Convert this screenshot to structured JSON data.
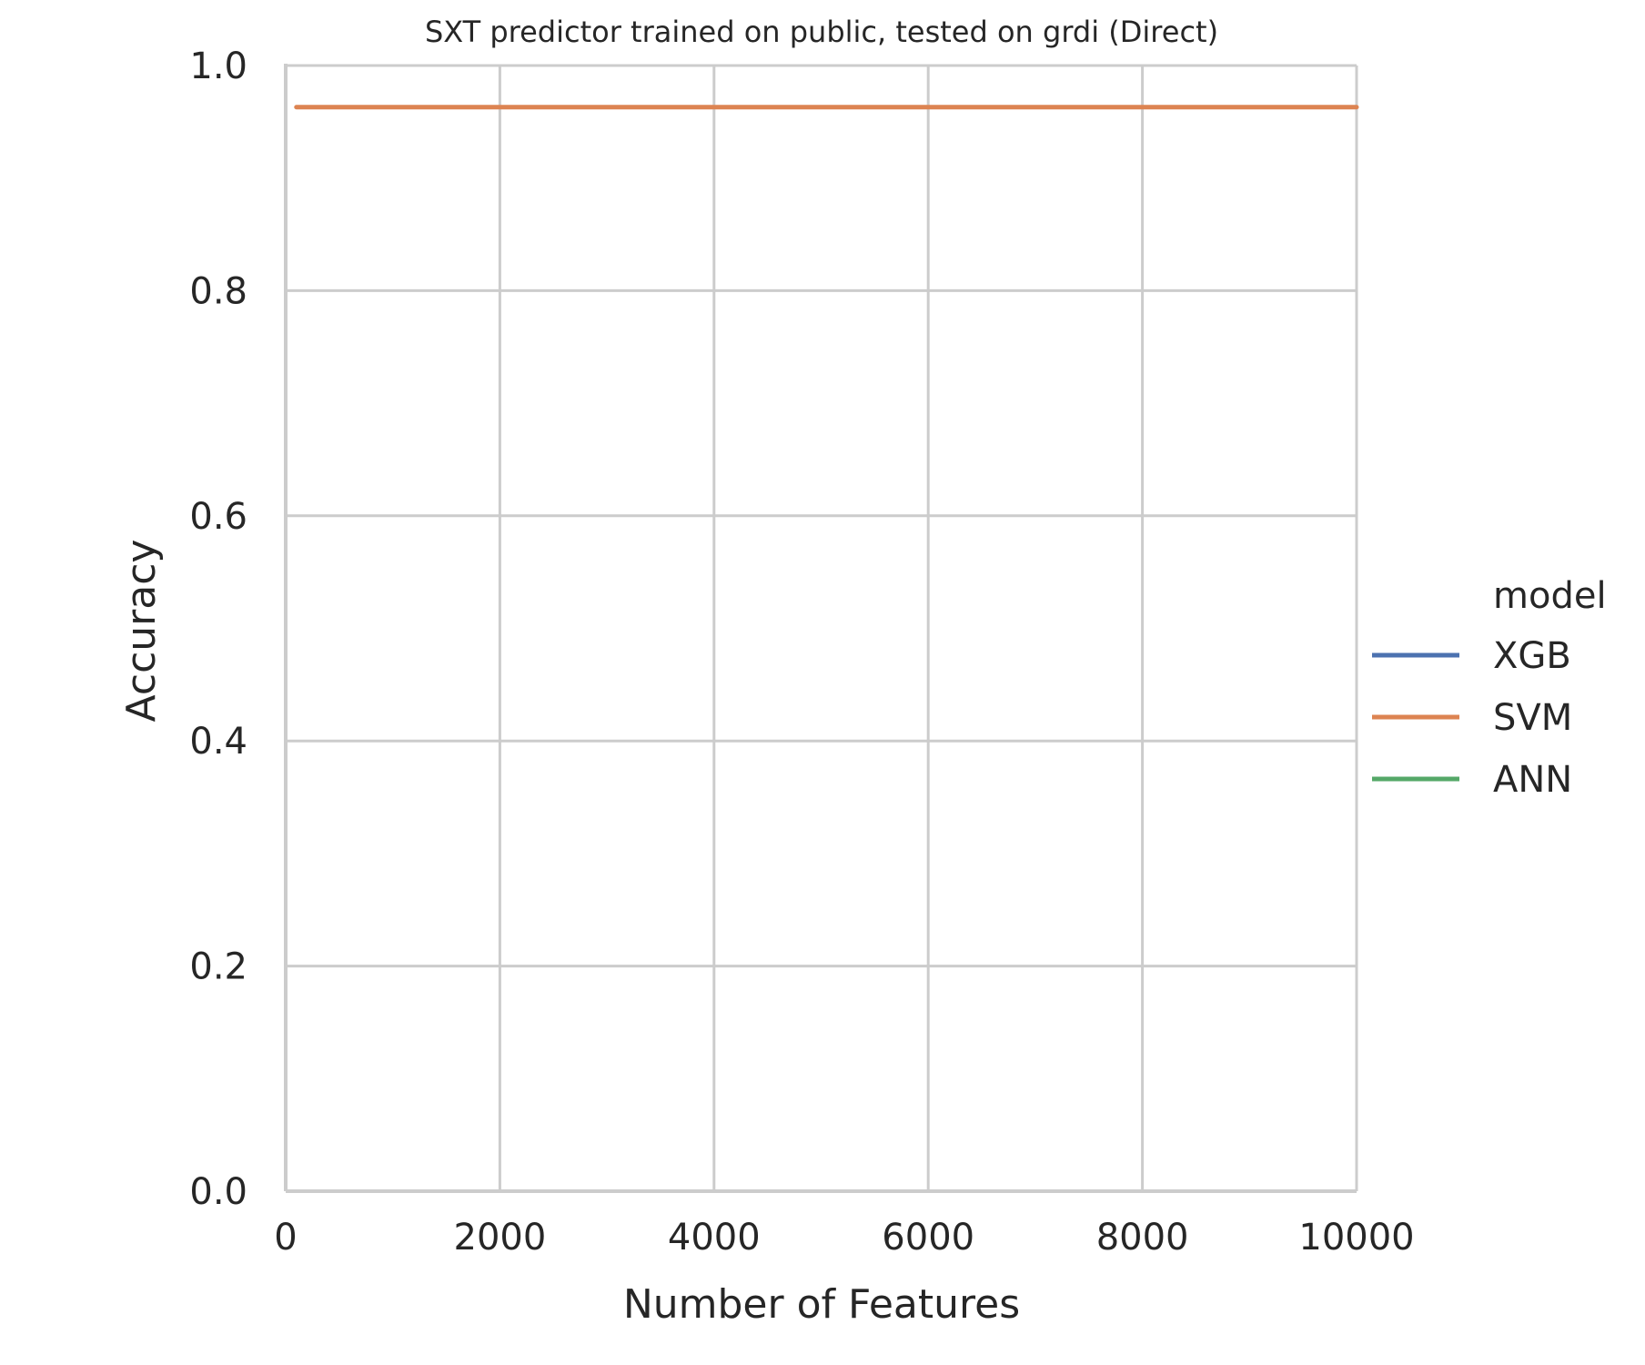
{
  "chart_data": {
    "type": "line",
    "title": "SXT predictor trained on public, tested on grdi (Direct)",
    "xlabel": "Number of Features",
    "ylabel": "Accuracy",
    "xlim": [
      0,
      10000
    ],
    "ylim": [
      0.0,
      1.0
    ],
    "xticks": [
      "0",
      "2000",
      "4000",
      "6000",
      "8000",
      "10000"
    ],
    "yticks": [
      "0.0",
      "0.2",
      "0.4",
      "0.6",
      "0.8",
      "1.0"
    ],
    "grid": true,
    "legend_title": "model",
    "legend_position": "right",
    "series": [
      {
        "name": "XGB",
        "color": "#4c72b0",
        "x": [],
        "y": []
      },
      {
        "name": "SVM",
        "color": "#dd8452",
        "x": [
          100,
          10000
        ],
        "y": [
          0.963,
          0.963
        ]
      },
      {
        "name": "ANN",
        "color": "#55a868",
        "x": [],
        "y": []
      }
    ]
  }
}
